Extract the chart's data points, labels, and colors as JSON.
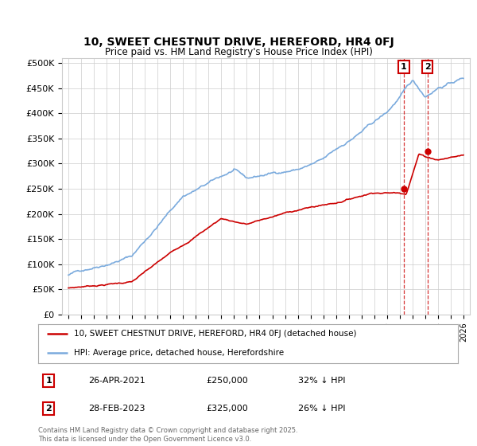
{
  "title": "10, SWEET CHESTNUT DRIVE, HEREFORD, HR4 0FJ",
  "subtitle": "Price paid vs. HM Land Registry's House Price Index (HPI)",
  "yticks": [
    0,
    50000,
    100000,
    150000,
    200000,
    250000,
    300000,
    350000,
    400000,
    450000,
    500000
  ],
  "ytick_labels": [
    "£0",
    "£50K",
    "£100K",
    "£150K",
    "£200K",
    "£250K",
    "£300K",
    "£350K",
    "£400K",
    "£450K",
    "£500K"
  ],
  "xlim_start": 1994.5,
  "xlim_end": 2026.5,
  "ylim_min": 0,
  "ylim_max": 510000,
  "hpi_color": "#7aaadd",
  "price_color": "#cc0000",
  "marker1_date": 2021.32,
  "marker2_date": 2023.17,
  "marker1_price": 250000,
  "marker2_price": 325000,
  "legend_entry1": "10, SWEET CHESTNUT DRIVE, HEREFORD, HR4 0FJ (detached house)",
  "legend_entry2": "HPI: Average price, detached house, Herefordshire",
  "table_row1": [
    "1",
    "26-APR-2021",
    "£250,000",
    "32% ↓ HPI"
  ],
  "table_row2": [
    "2",
    "28-FEB-2023",
    "£325,000",
    "26% ↓ HPI"
  ],
  "footnote": "Contains HM Land Registry data © Crown copyright and database right 2025.\nThis data is licensed under the Open Government Licence v3.0.",
  "background_color": "#ffffff",
  "grid_color": "#cccccc"
}
